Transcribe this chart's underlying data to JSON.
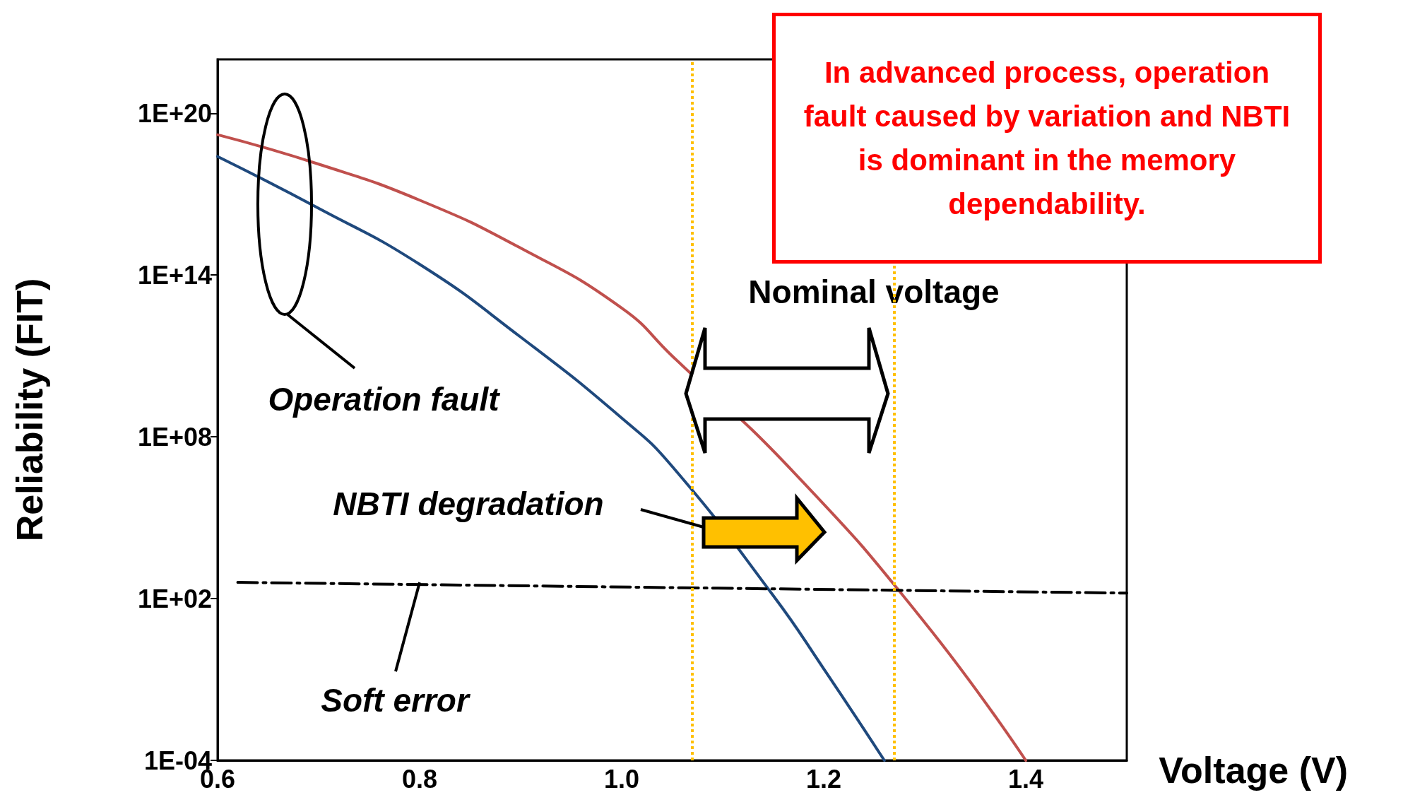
{
  "chart_data": {
    "type": "line",
    "xlabel": "Voltage (V)",
    "ylabel": "Reliability (FIT)",
    "log": "y",
    "grid": false,
    "marker": "none",
    "xlim": [
      0.6,
      1.5
    ],
    "xticks": [
      0.6,
      0.8,
      {
        "value": 1,
        "label": "1.0"
      },
      1.2,
      1.4
    ],
    "ylim": [
      0.0001,
      1e+22
    ],
    "yticks": [
      {
        "value": 0.0001,
        "label": "1E-04"
      },
      {
        "value": 100,
        "label": "1E+02"
      },
      {
        "value": 100000000.0,
        "label": "1E+08"
      },
      {
        "value": 100000000000000.0,
        "label": "1E+14"
      },
      {
        "value": 1e+20,
        "label": "1E+20"
      }
    ],
    "series": [
      {
        "color": "#c0504d",
        "line_style": "solid",
        "x": [
          0.6,
          0.7,
          0.8,
          0.9,
          1.0,
          1.05,
          1.17,
          1.3,
          1.4
        ],
        "values": [
          1.6e+19,
          1.3e+18,
          6e+16,
          1000000000000000.0,
          6000000000000.0,
          100000000000.0,
          5000000.0,
          13,
          0.0001
        ]
      },
      {
        "color": "#1f497d",
        "line_style": "solid",
        "x": [
          0.6,
          0.7,
          0.8,
          0.9,
          1.0,
          1.05,
          1.15,
          1.2,
          1.26
        ],
        "values": [
          2.5e+18,
          3e+16,
          250000000000000.0,
          500000000000.0,
          500000000.0,
          8000000.0,
          130,
          0.25,
          0.0001
        ]
      },
      {
        "color": "#000000",
        "line_style": "dashed",
        "x": [
          0.62,
          1.5
        ],
        "values": [
          400,
          160
        ]
      }
    ],
    "ref_lines": [
      {
        "axis": "x",
        "value": 1.07,
        "color": "#ffc000",
        "line_style": "dotted"
      },
      {
        "axis": "x",
        "value": 1.27,
        "color": "#ffc000",
        "line_style": "dotted"
      }
    ],
    "annotations": [
      "Operation fault",
      {
        "text": "Soft error",
        "x": 0.8,
        "y": 400
      },
      "NBTI degradation",
      "Nominal voltage",
      "In advanced process, operation fault caused by variation and NBTI is dominant in the memory dependability."
    ]
  }
}
